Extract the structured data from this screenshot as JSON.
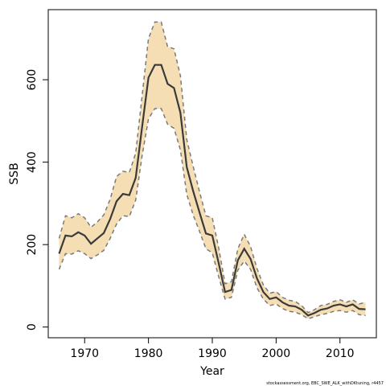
{
  "chart_data": {
    "type": "line",
    "title": "",
    "xlabel": "Year",
    "ylabel": "SSB",
    "footnote": "stockassessment.org, EBC_SWE_ALK_withDKtuning, r4457",
    "xlim": [
      1964.3,
      2015.7
    ],
    "ylim": [
      -26,
      770
    ],
    "x_ticks": [
      1970,
      1980,
      1990,
      2000,
      2010
    ],
    "y_ticks": [
      0,
      200,
      400,
      600
    ],
    "grid": false,
    "colors": {
      "band_fill": "#F5DEB3",
      "band_edge": "#7a7a7a",
      "line": "#3a3a3a",
      "axis": "#000000"
    },
    "x": [
      1966,
      1967,
      1968,
      1969,
      1970,
      1971,
      1972,
      1973,
      1974,
      1975,
      1976,
      1977,
      1978,
      1979,
      1980,
      1981,
      1982,
      1983,
      1984,
      1985,
      1986,
      1987,
      1988,
      1989,
      1990,
      1991,
      1992,
      1993,
      1994,
      1995,
      1996,
      1997,
      1998,
      1999,
      2000,
      2001,
      2002,
      2003,
      2004,
      2005,
      2006,
      2007,
      2008,
      2009,
      2010,
      2011,
      2012,
      2013,
      2014
    ],
    "series": [
      {
        "values": [
          178,
          222,
          220,
          230,
          222,
          202,
          215,
          228,
          262,
          305,
          323,
          320,
          362,
          485,
          605,
          636,
          636,
          590,
          580,
          520,
          388,
          330,
          278,
          227,
          222,
          155,
          85,
          90,
          162,
          190,
          165,
          118,
          85,
          68,
          72,
          60,
          52,
          50,
          42,
          28,
          34,
          42,
          45,
          52,
          55,
          50,
          55,
          44,
          43
        ]
      },
      {
        "values": [
          140,
          178,
          177,
          185,
          178,
          166,
          175,
          186,
          215,
          250,
          270,
          268,
          308,
          415,
          505,
          530,
          530,
          492,
          482,
          430,
          322,
          272,
          232,
          190,
          180,
          122,
          68,
          72,
          138,
          160,
          140,
          95,
          68,
          52,
          56,
          45,
          38,
          36,
          30,
          20,
          25,
          30,
          33,
          38,
          40,
          36,
          40,
          30,
          28
        ]
      },
      {
        "values": [
          215,
          270,
          265,
          275,
          265,
          242,
          255,
          272,
          310,
          365,
          378,
          375,
          422,
          560,
          700,
          740,
          740,
          680,
          675,
          610,
          455,
          390,
          328,
          270,
          265,
          192,
          105,
          110,
          190,
          225,
          195,
          142,
          102,
          82,
          86,
          72,
          65,
          62,
          52,
          35,
          42,
          52,
          55,
          62,
          66,
          60,
          66,
          56,
          60
        ]
      }
    ]
  }
}
